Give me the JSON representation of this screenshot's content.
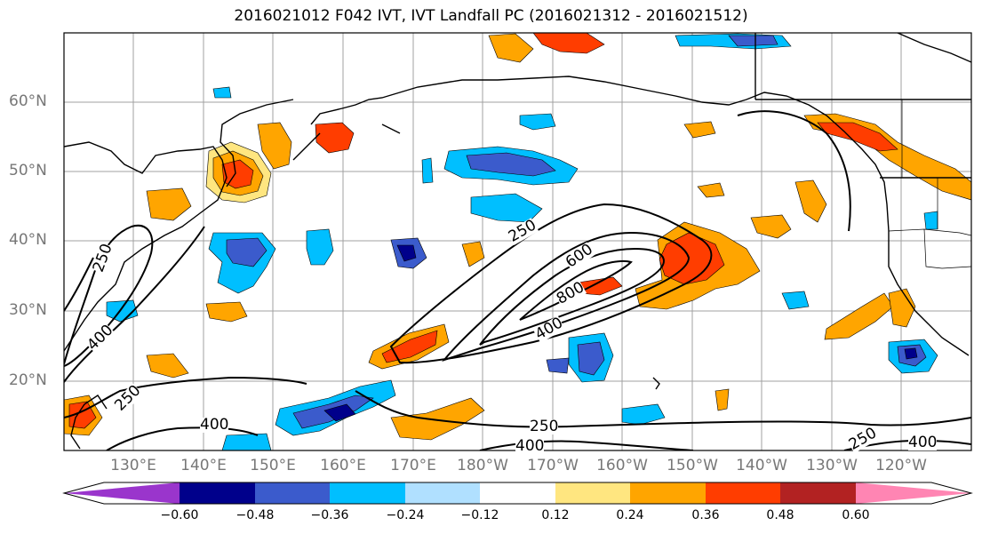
{
  "title": "2016021012 F042 IVT, IVT Landfall PC (2016021312 - 2016021512)",
  "lat_labels": [
    "60°N",
    "50°N",
    "40°N",
    "30°N",
    "20°N"
  ],
  "lon_labels": [
    "130°E",
    "140°E",
    "150°E",
    "160°E",
    "170°E",
    "180°W",
    "170°W",
    "160°W",
    "150°W",
    "140°W",
    "130°W",
    "120°W"
  ],
  "contour_labels": [
    "250",
    "400",
    "600",
    "800",
    "400",
    "250",
    "250",
    "400",
    "250",
    "400",
    "250",
    "400"
  ],
  "colorbar": {
    "colors": [
      "#9a35cc",
      "#00008b",
      "#3b5bcc",
      "#00bfff",
      "#b0e0ff",
      "#ffffff",
      "#ffe680",
      "#ffa500",
      "#ff3d00",
      "#b22222",
      "#ff85b3"
    ],
    "ticks": [
      "−0.60",
      "−0.48",
      "−0.36",
      "−0.24",
      "−0.12",
      "0.12",
      "0.24",
      "0.36",
      "0.48",
      "0.60"
    ]
  }
}
